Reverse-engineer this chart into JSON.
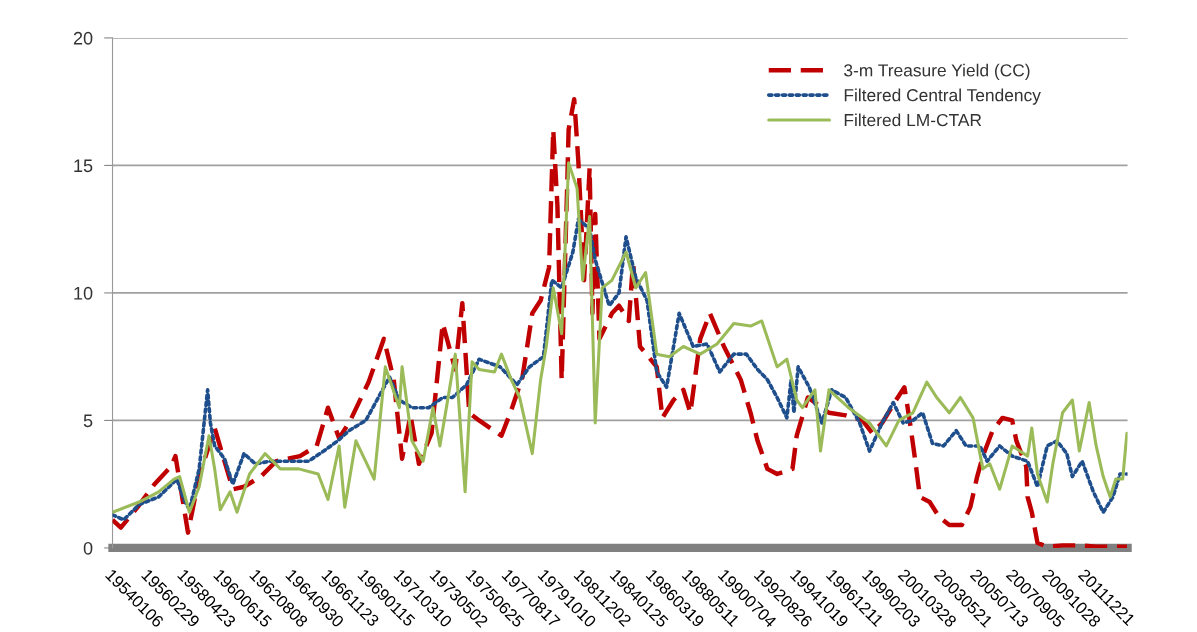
{
  "chart_data": {
    "type": "line",
    "xlim": [
      "1954-01-01",
      "2014-06-15"
    ],
    "ylim": [
      0,
      20
    ],
    "yticks": [
      0,
      5,
      10,
      15,
      20
    ],
    "xticks": [
      {
        "value": "1954-01-06",
        "label": "19540106"
      },
      {
        "value": "1956-02-29",
        "label": "19560229"
      },
      {
        "value": "1958-04-23",
        "label": "19580423"
      },
      {
        "value": "1960-06-15",
        "label": "19600615"
      },
      {
        "value": "1962-08-08",
        "label": "19620808"
      },
      {
        "value": "1964-09-30",
        "label": "19640930"
      },
      {
        "value": "1966-11-23",
        "label": "19661123"
      },
      {
        "value": "1969-01-15",
        "label": "19690115"
      },
      {
        "value": "1971-03-10",
        "label": "19710310"
      },
      {
        "value": "1973-05-02",
        "label": "19730502"
      },
      {
        "value": "1975-06-25",
        "label": "19750625"
      },
      {
        "value": "1977-08-17",
        "label": "19770817"
      },
      {
        "value": "1979-10-10",
        "label": "19791010"
      },
      {
        "value": "1981-12-02",
        "label": "19811202"
      },
      {
        "value": "1984-01-25",
        "label": "19840125"
      },
      {
        "value": "1986-03-19",
        "label": "19860319"
      },
      {
        "value": "1988-05-11",
        "label": "19880511"
      },
      {
        "value": "1990-07-04",
        "label": "19900704"
      },
      {
        "value": "1992-08-26",
        "label": "19920826"
      },
      {
        "value": "1994-10-19",
        "label": "19941019"
      },
      {
        "value": "1996-12-11",
        "label": "19961211"
      },
      {
        "value": "1999-02-03",
        "label": "19990203"
      },
      {
        "value": "2001-03-28",
        "label": "20010328"
      },
      {
        "value": "2003-05-21",
        "label": "20030521"
      },
      {
        "value": "2005-07-13",
        "label": "20050713"
      },
      {
        "value": "2007-09-05",
        "label": "20070905"
      },
      {
        "value": "2009-10-28",
        "label": "20091028"
      },
      {
        "value": "2011-12-21",
        "label": "20111221"
      }
    ],
    "grid": "y",
    "legend": "top right",
    "marker": "none",
    "series": [
      {
        "name": "3-m Treasure Yield (CC)",
        "color": "#c00000",
        "line_style": "dashed",
        "x": [
          "1954-01",
          "1954-07",
          "1955-07",
          "1956-07",
          "1957-07",
          "1957-10",
          "1958-07",
          "1959-03",
          "1960-02",
          "1961-03",
          "1961-11",
          "1962-11",
          "1963-10",
          "1965-03",
          "1966-03",
          "1966-11",
          "1967-07",
          "1968-03",
          "1969-04",
          "1970-03",
          "1970-10",
          "1971-04",
          "1971-10",
          "1972-04",
          "1973-01",
          "1973-09",
          "1974-06",
          "1974-11",
          "1975-04",
          "1975-11",
          "1976-07",
          "1977-03",
          "1977-10",
          "1978-06",
          "1979-01",
          "1979-07",
          "1980-01",
          "1980-04",
          "1980-07",
          "1980-10",
          "1981-02",
          "1981-03",
          "1981-07",
          "1981-10",
          "1982-02",
          "1982-06",
          "1982-08",
          "1982-10",
          "1983-01",
          "1983-10",
          "1984-03",
          "1984-10",
          "1985-01",
          "1985-06",
          "1986-06",
          "1986-10",
          "1987-06",
          "1988-01",
          "1988-06",
          "1989-01",
          "1989-08",
          "1990-06",
          "1991-06",
          "1992-01",
          "1992-06",
          "1993-01",
          "1993-08",
          "1994-07",
          "1994-10",
          "1995-06",
          "1996-09",
          "1997-09",
          "1998-09",
          "1999-04",
          "1999-11",
          "2000-09",
          "2001-03",
          "2001-07",
          "2001-11",
          "2002-02",
          "2002-09",
          "2003-04",
          "2003-11",
          "2004-08",
          "2005-02",
          "2005-07",
          "2005-11",
          "2006-06",
          "2007-01",
          "2007-08",
          "2007-11",
          "2008-06",
          "2008-07",
          "2008-10",
          "2009-02",
          "2009-09",
          "2010-08",
          "2011-08",
          "2012-08",
          "2014-06"
        ],
        "values": [
          1.1,
          0.8,
          1.6,
          2.5,
          3.2,
          3.6,
          0.6,
          2.8,
          4.7,
          2.3,
          2.4,
          2.8,
          3.4,
          3.6,
          4.0,
          5.5,
          4.3,
          5.0,
          6.5,
          8.2,
          6.6,
          3.5,
          5.2,
          3.3,
          4.5,
          8.8,
          7.0,
          9.6,
          5.3,
          5.0,
          4.7,
          4.4,
          5.4,
          6.7,
          9.2,
          9.7,
          11.0,
          16.4,
          13.4,
          6.6,
          14.4,
          16.4,
          17.6,
          15.1,
          10.5,
          14.9,
          9.2,
          13.1,
          8.2,
          9.2,
          9.5,
          8.9,
          11.2,
          7.9,
          7.1,
          5.1,
          5.8,
          6.2,
          5.3,
          8.2,
          9.2,
          7.9,
          6.6,
          5.3,
          4.2,
          3.1,
          2.9,
          3.1,
          4.4,
          5.9,
          5.3,
          5.2,
          5.0,
          4.5,
          4.9,
          5.8,
          6.3,
          4.9,
          3.3,
          2.0,
          1.8,
          1.2,
          0.9,
          0.9,
          1.6,
          2.8,
          3.6,
          4.6,
          5.1,
          5.0,
          4.2,
          3.2,
          2.0,
          1.4,
          0.2,
          0.05,
          0.1,
          0.1,
          0.05,
          0.05
        ]
      },
      {
        "name": "Filtered Central Tendency",
        "color": "#1f4e8c",
        "line_style": "dotted",
        "x": [
          "1954-01",
          "1954-09",
          "1955-08",
          "1956-10",
          "1957-11",
          "1958-04",
          "1958-08",
          "1959-03",
          "1959-09",
          "1959-11",
          "1960-02",
          "1960-09",
          "1961-03",
          "1961-11",
          "1962-07",
          "1963-06",
          "1964-08",
          "1965-09",
          "1966-08",
          "1967-06",
          "1968-02",
          "1969-02",
          "1969-11",
          "1970-07",
          "1971-02",
          "1971-11",
          "1972-11",
          "1973-09",
          "1974-04",
          "1975-02",
          "1975-11",
          "1977-02",
          "1978-02",
          "1978-11",
          "1979-09",
          "1980-03",
          "1980-10",
          "1981-06",
          "1981-10",
          "1982-06",
          "1982-10",
          "1983-08",
          "1984-03",
          "1984-08",
          "1985-03",
          "1985-11",
          "1986-06",
          "1987-01",
          "1987-10",
          "1988-08",
          "1989-06",
          "1990-03",
          "1991-01",
          "1991-10",
          "1992-06",
          "1993-01",
          "1993-08",
          "1994-03",
          "1994-06",
          "1994-08",
          "1994-11",
          "1995-07",
          "1996-04",
          "1996-11",
          "1997-09",
          "1998-07",
          "1999-02",
          "1999-11",
          "2000-07",
          "2001-02",
          "2001-09",
          "2002-04",
          "2002-11",
          "2003-07",
          "2004-04",
          "2004-11",
          "2005-09",
          "2006-02",
          "2006-11",
          "2007-08",
          "2008-07",
          "2009-02",
          "2009-09",
          "2010-04",
          "2010-11",
          "2011-03",
          "2011-10",
          "2012-06",
          "2013-01",
          "2013-08",
          "2014-01",
          "2014-06"
        ],
        "values": [
          1.3,
          1.1,
          1.7,
          2.0,
          2.7,
          1.9,
          1.5,
          3.1,
          6.2,
          4.9,
          4.0,
          3.5,
          2.5,
          3.7,
          3.3,
          3.4,
          3.4,
          3.4,
          3.8,
          4.2,
          4.6,
          5.0,
          5.9,
          6.7,
          5.8,
          5.5,
          5.5,
          5.9,
          5.9,
          6.4,
          7.4,
          7.1,
          6.4,
          7.1,
          7.5,
          10.5,
          10.2,
          11.6,
          12.9,
          12.5,
          11.3,
          9.5,
          10.0,
          12.2,
          10.6,
          9.7,
          6.9,
          6.3,
          9.2,
          7.9,
          8.0,
          6.9,
          7.6,
          7.6,
          7.0,
          6.6,
          5.9,
          5.1,
          6.6,
          5.3,
          7.1,
          6.3,
          4.9,
          6.2,
          5.9,
          4.9,
          3.8,
          4.9,
          5.7,
          4.9,
          5.0,
          5.3,
          4.1,
          4.0,
          4.6,
          4.0,
          4.0,
          3.4,
          4.0,
          3.6,
          3.4,
          2.4,
          4.0,
          4.2,
          3.7,
          2.8,
          3.4,
          2.2,
          1.4,
          2.0,
          2.9,
          2.9
        ]
      },
      {
        "name": "Filtered LM-CTAR",
        "color": "#9bbb59",
        "line_style": "solid",
        "x": [
          "1954-01",
          "1955-08",
          "1956-10",
          "1957-09",
          "1958-01",
          "1958-08",
          "1959-03",
          "1959-10",
          "1960-02",
          "1960-06",
          "1961-01",
          "1961-06",
          "1962-03",
          "1963-02",
          "1964-01",
          "1965-02",
          "1966-04",
          "1966-11",
          "1967-07",
          "1967-11",
          "1968-07",
          "1969-08",
          "1970-04",
          "1971-02",
          "1971-04",
          "1971-11",
          "1972-07",
          "1973-02",
          "1973-07",
          "1973-11",
          "1974-06",
          "1974-09",
          "1975-01",
          "1975-06",
          "1975-11",
          "1976-10",
          "1977-03",
          "1977-10",
          "1978-04",
          "1979-01",
          "1979-07",
          "1979-11",
          "1980-04",
          "1980-10",
          "1981-03",
          "1981-09",
          "1982-01",
          "1982-06",
          "1982-10",
          "1983-03",
          "1983-10",
          "1984-08",
          "1985-03",
          "1985-10",
          "1986-06",
          "1987-03",
          "1988-01",
          "1989-01",
          "1990-01",
          "1991-01",
          "1992-01",
          "1992-09",
          "1993-08",
          "1994-03",
          "1994-10",
          "1995-02",
          "1995-11",
          "1996-03",
          "1996-09",
          "1997-11",
          "1999-02",
          "2000-02",
          "2000-11",
          "2001-09",
          "2002-07",
          "2003-02",
          "2003-11",
          "2004-07",
          "2005-04",
          "2005-11",
          "2006-04",
          "2006-11",
          "2007-08",
          "2008-07",
          "2008-10",
          "2009-02",
          "2009-09",
          "2010-01",
          "2010-08",
          "2011-03",
          "2011-08",
          "2012-03",
          "2012-08",
          "2013-01",
          "2013-06",
          "2013-10",
          "2014-03",
          "2014-06"
        ],
        "values": [
          1.4,
          1.8,
          2.2,
          2.7,
          2.8,
          1.4,
          2.4,
          4.4,
          3.1,
          1.5,
          2.2,
          1.4,
          2.9,
          3.7,
          3.1,
          3.1,
          2.9,
          1.9,
          4.0,
          1.6,
          4.2,
          2.7,
          7.1,
          5.5,
          7.1,
          4.2,
          3.4,
          5.5,
          4.0,
          5.3,
          7.6,
          5.3,
          2.2,
          7.3,
          7.0,
          6.9,
          7.6,
          6.6,
          5.9,
          3.7,
          6.6,
          7.9,
          10.2,
          8.4,
          15.1,
          14.1,
          10.5,
          13.0,
          4.9,
          10.2,
          10.5,
          11.6,
          10.2,
          10.8,
          7.6,
          7.5,
          7.9,
          7.6,
          8.0,
          8.8,
          8.7,
          8.9,
          7.1,
          7.4,
          5.8,
          5.5,
          6.2,
          3.8,
          6.2,
          5.5,
          4.9,
          4.0,
          5.0,
          5.3,
          6.5,
          5.9,
          5.3,
          5.9,
          5.1,
          3.1,
          3.3,
          2.3,
          4.0,
          3.6,
          4.7,
          2.9,
          1.8,
          3.3,
          5.3,
          5.8,
          3.8,
          5.7,
          4.0,
          2.8,
          2.0,
          2.7,
          2.7,
          4.5
        ]
      }
    ]
  }
}
